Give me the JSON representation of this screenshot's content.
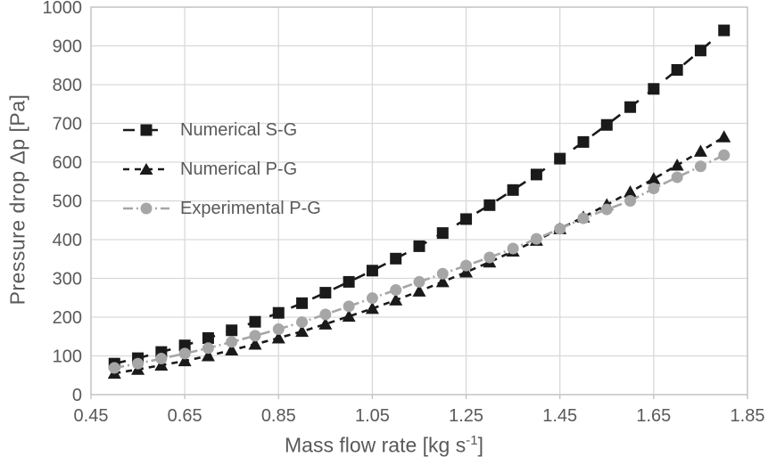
{
  "figure": {
    "background": "#ffffff"
  },
  "colors": {
    "grid": "#d9d9d9",
    "plot_border": "#bfbfbf",
    "tick_mark": "#bfbfbf",
    "text": "#595959",
    "series_black": "#1a1a1a",
    "series_gray": "#a6a6a6"
  },
  "chart_data": {
    "type": "line",
    "title": "",
    "xlabel": "Mass flow rate [kg s⁻¹]",
    "xlabel_parts": {
      "prefix": "Mass flow rate [kg s",
      "sup": "-1",
      "suffix": "]"
    },
    "ylabel": "Pressure drop Δp [Pa]",
    "xlim": [
      0.45,
      1.85
    ],
    "ylim": [
      0,
      1000
    ],
    "x_tick_labels": [
      "0.45",
      "0.65",
      "0.85",
      "1.05",
      "1.25",
      "1.45",
      "1.65",
      "1.85"
    ],
    "y_tick_labels": [
      "0",
      "100",
      "200",
      "300",
      "400",
      "500",
      "600",
      "700",
      "800",
      "900",
      "1000"
    ],
    "grid": true,
    "legend_position": "inside-top-left",
    "x": [
      0.5,
      0.55,
      0.6,
      0.65,
      0.7,
      0.75,
      0.8,
      0.85,
      0.9,
      0.95,
      1.0,
      1.05,
      1.1,
      1.15,
      1.2,
      1.25,
      1.3,
      1.35,
      1.4,
      1.45,
      1.5,
      1.55,
      1.6,
      1.65,
      1.7,
      1.75,
      1.8
    ],
    "series": [
      {
        "name": "Numerical S-G",
        "marker": "square",
        "line_style": "long-dash",
        "color": "#1a1a1a",
        "values": [
          80,
          94,
          110,
          127,
          146,
          166,
          188,
          211,
          236,
          263,
          291,
          320,
          351,
          383,
          417,
          453,
          489,
          528,
          568,
          609,
          652,
          696,
          742,
          789,
          838,
          888,
          940
        ]
      },
      {
        "name": "Numerical P-G",
        "marker": "triangle",
        "line_style": "dash",
        "color": "#1a1a1a",
        "values": [
          55,
          65,
          76,
          87,
          100,
          115,
          130,
          146,
          163,
          182,
          202,
          222,
          244,
          267,
          291,
          316,
          342,
          370,
          398,
          428,
          458,
          490,
          523,
          557,
          592,
          628,
          665
        ]
      },
      {
        "name": "Experimental P-G",
        "marker": "circle",
        "line_style": "dash-dot",
        "color": "#a6a6a6",
        "values": [
          69,
          80,
          93,
          106,
          120,
          136,
          152,
          169,
          187,
          207,
          228,
          249,
          270,
          291,
          312,
          333,
          354,
          377,
          402,
          428,
          455,
          478,
          500,
          532,
          561,
          589,
          618
        ]
      }
    ]
  }
}
